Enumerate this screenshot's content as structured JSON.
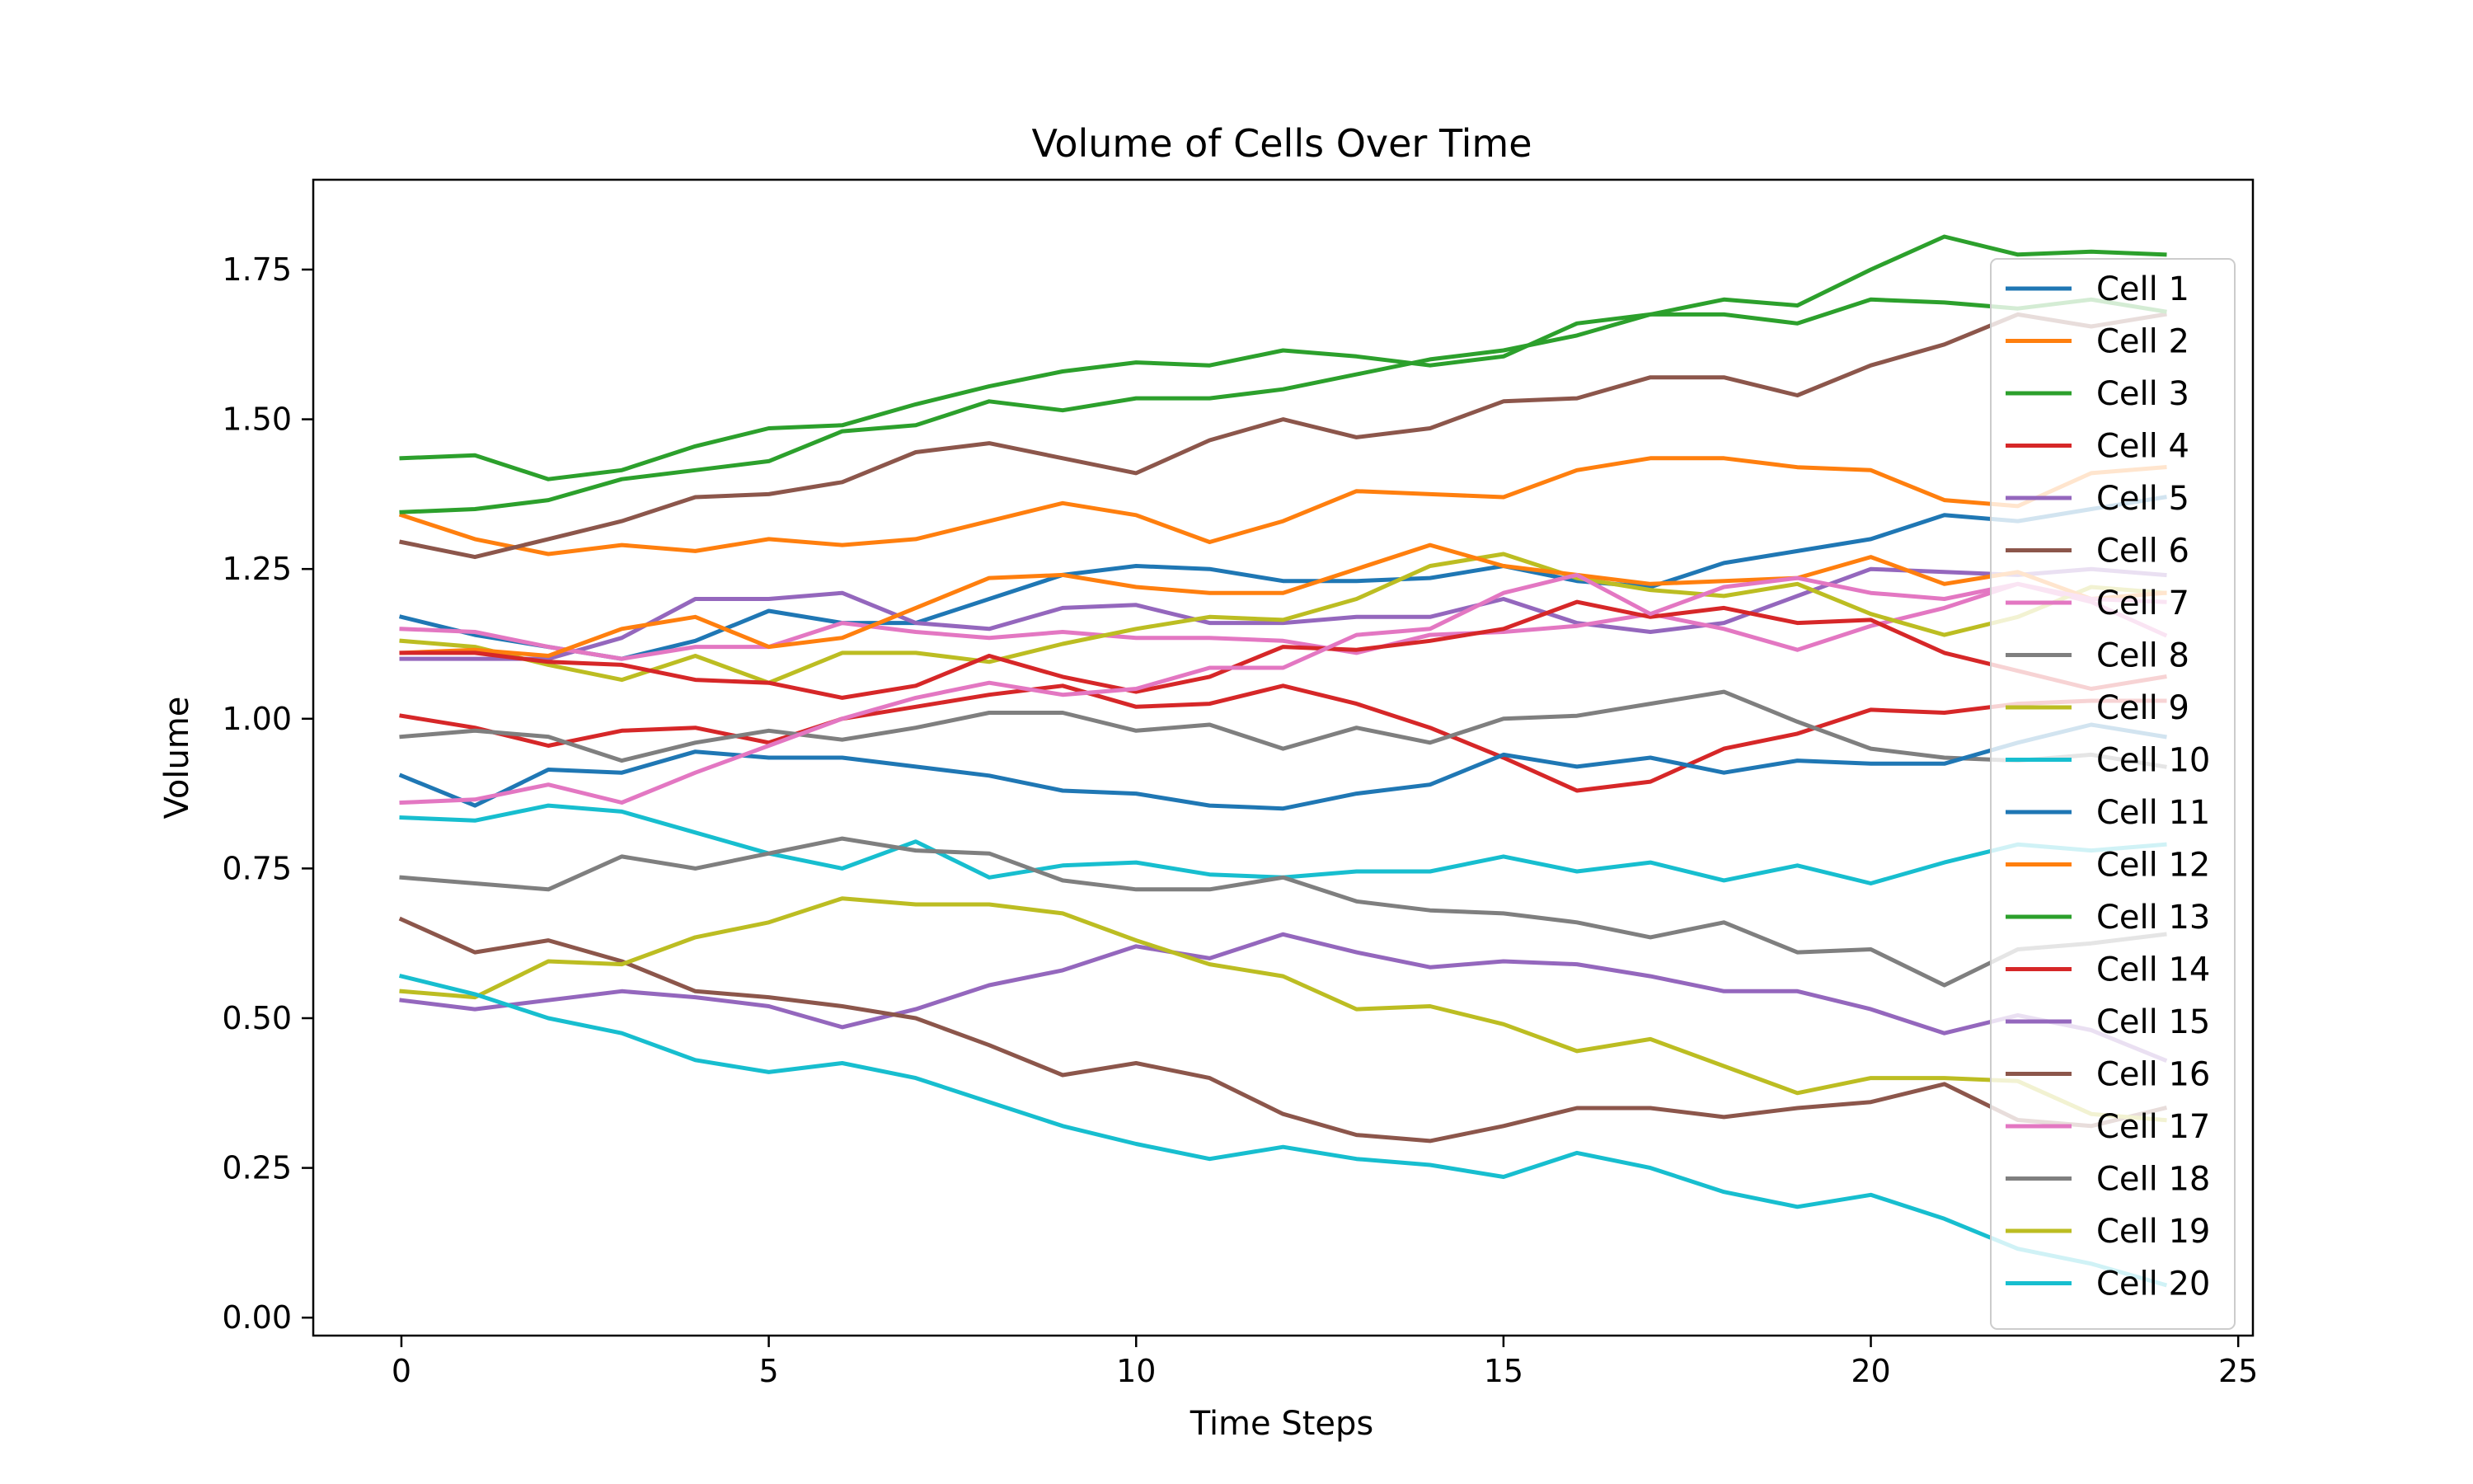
{
  "chart_data": {
    "type": "line",
    "title": "Volume of Cells Over Time",
    "xlabel": "Time Steps",
    "ylabel": "Volume",
    "xlim": [
      -1.2,
      25.2
    ],
    "ylim": [
      -0.03,
      1.9
    ],
    "xticks": [
      0,
      5,
      10,
      15,
      20,
      25
    ],
    "yticks": [
      0.0,
      0.25,
      0.5,
      0.75,
      1.0,
      1.25,
      1.5,
      1.75
    ],
    "ytick_labels": [
      "0.00",
      "0.25",
      "0.50",
      "0.75",
      "1.00",
      "1.25",
      "1.50",
      "1.75"
    ],
    "grid": false,
    "legend_position": "upper right",
    "x": [
      0,
      1,
      2,
      3,
      4,
      5,
      6,
      7,
      8,
      9,
      10,
      11,
      12,
      13,
      14,
      15,
      16,
      17,
      18,
      19,
      20,
      21,
      22,
      23,
      24
    ],
    "series": [
      {
        "name": "Cell 1",
        "color": "#1f77b4",
        "values": [
          1.17,
          1.14,
          1.12,
          1.1,
          1.13,
          1.18,
          1.16,
          1.16,
          1.2,
          1.24,
          1.255,
          1.25,
          1.23,
          1.23,
          1.235,
          1.255,
          1.23,
          1.22,
          1.26,
          1.28,
          1.3,
          1.34,
          1.33,
          1.35,
          1.37
        ]
      },
      {
        "name": "Cell 2",
        "color": "#ff7f0e",
        "values": [
          1.34,
          1.3,
          1.275,
          1.29,
          1.28,
          1.3,
          1.29,
          1.3,
          1.33,
          1.36,
          1.34,
          1.295,
          1.33,
          1.38,
          1.375,
          1.37,
          1.415,
          1.435,
          1.435,
          1.42,
          1.415,
          1.365,
          1.355,
          1.41,
          1.42
        ]
      },
      {
        "name": "Cell 3",
        "color": "#2ca02c",
        "values": [
          1.435,
          1.44,
          1.4,
          1.415,
          1.455,
          1.485,
          1.49,
          1.525,
          1.555,
          1.58,
          1.595,
          1.59,
          1.615,
          1.605,
          1.59,
          1.605,
          1.66,
          1.675,
          1.7,
          1.69,
          1.75,
          1.805,
          1.775,
          1.78,
          1.775
        ]
      },
      {
        "name": "Cell 4",
        "color": "#d62728",
        "values": [
          1.005,
          0.985,
          0.955,
          0.98,
          0.985,
          0.96,
          1.0,
          1.02,
          1.04,
          1.055,
          1.02,
          1.025,
          1.055,
          1.025,
          0.985,
          0.935,
          0.88,
          0.895,
          0.95,
          0.975,
          1.015,
          1.01,
          1.025,
          1.03,
          1.03
        ]
      },
      {
        "name": "Cell 5",
        "color": "#9467bd",
        "values": [
          1.1,
          1.1,
          1.1,
          1.135,
          1.2,
          1.2,
          1.21,
          1.16,
          1.15,
          1.185,
          1.19,
          1.16,
          1.16,
          1.17,
          1.17,
          1.2,
          1.16,
          1.145,
          1.16,
          1.205,
          1.25,
          1.245,
          1.24,
          1.25,
          1.24
        ]
      },
      {
        "name": "Cell 6",
        "color": "#8c564b",
        "values": [
          1.295,
          1.27,
          1.3,
          1.33,
          1.37,
          1.375,
          1.395,
          1.445,
          1.46,
          1.435,
          1.41,
          1.465,
          1.5,
          1.47,
          1.485,
          1.53,
          1.535,
          1.57,
          1.57,
          1.54,
          1.59,
          1.625,
          1.675,
          1.655,
          1.675
        ]
      },
      {
        "name": "Cell 7",
        "color": "#e377c2",
        "values": [
          1.15,
          1.145,
          1.12,
          1.1,
          1.12,
          1.12,
          1.16,
          1.145,
          1.135,
          1.145,
          1.135,
          1.135,
          1.13,
          1.11,
          1.14,
          1.145,
          1.155,
          1.175,
          1.15,
          1.115,
          1.155,
          1.185,
          1.225,
          1.195,
          1.14
        ]
      },
      {
        "name": "Cell 8",
        "color": "#7f7f7f",
        "values": [
          0.97,
          0.98,
          0.97,
          0.93,
          0.96,
          0.98,
          0.965,
          0.985,
          1.01,
          1.01,
          0.98,
          0.99,
          0.95,
          0.985,
          0.96,
          1.0,
          1.005,
          1.025,
          1.045,
          0.995,
          0.95,
          0.935,
          0.93,
          0.94,
          0.92
        ]
      },
      {
        "name": "Cell 9",
        "color": "#bcbd22",
        "values": [
          1.13,
          1.12,
          1.09,
          1.065,
          1.105,
          1.06,
          1.11,
          1.11,
          1.095,
          1.125,
          1.15,
          1.17,
          1.165,
          1.2,
          1.255,
          1.275,
          1.235,
          1.215,
          1.205,
          1.225,
          1.175,
          1.14,
          1.17,
          1.22,
          1.21
        ]
      },
      {
        "name": "Cell 10",
        "color": "#17becf",
        "values": [
          0.835,
          0.83,
          0.855,
          0.845,
          0.81,
          0.775,
          0.75,
          0.795,
          0.735,
          0.755,
          0.76,
          0.74,
          0.735,
          0.745,
          0.745,
          0.77,
          0.745,
          0.76,
          0.73,
          0.755,
          0.725,
          0.76,
          0.79,
          0.78,
          0.79
        ]
      },
      {
        "name": "Cell 11",
        "color": "#1f77b4",
        "values": [
          0.905,
          0.855,
          0.915,
          0.91,
          0.945,
          0.935,
          0.935,
          0.92,
          0.905,
          0.88,
          0.875,
          0.855,
          0.85,
          0.875,
          0.89,
          0.94,
          0.92,
          0.935,
          0.91,
          0.93,
          0.925,
          0.925,
          0.96,
          0.99,
          0.97
        ]
      },
      {
        "name": "Cell 12",
        "color": "#ff7f0e",
        "values": [
          1.11,
          1.115,
          1.105,
          1.15,
          1.17,
          1.12,
          1.135,
          1.185,
          1.235,
          1.24,
          1.22,
          1.21,
          1.21,
          1.25,
          1.29,
          1.255,
          1.24,
          1.225,
          1.23,
          1.235,
          1.27,
          1.225,
          1.245,
          1.2,
          1.21
        ]
      },
      {
        "name": "Cell 13",
        "color": "#2ca02c",
        "values": [
          1.345,
          1.35,
          1.365,
          1.4,
          1.415,
          1.43,
          1.48,
          1.49,
          1.53,
          1.515,
          1.535,
          1.535,
          1.55,
          1.575,
          1.6,
          1.615,
          1.64,
          1.675,
          1.675,
          1.66,
          1.7,
          1.695,
          1.685,
          1.7,
          1.68
        ]
      },
      {
        "name": "Cell 14",
        "color": "#d62728",
        "values": [
          1.11,
          1.11,
          1.095,
          1.09,
          1.065,
          1.06,
          1.035,
          1.055,
          1.105,
          1.07,
          1.045,
          1.07,
          1.12,
          1.115,
          1.13,
          1.15,
          1.195,
          1.17,
          1.185,
          1.16,
          1.165,
          1.11,
          1.08,
          1.05,
          1.07
        ]
      },
      {
        "name": "Cell 15",
        "color": "#9467bd",
        "values": [
          0.53,
          0.515,
          0.53,
          0.545,
          0.535,
          0.52,
          0.485,
          0.515,
          0.555,
          0.58,
          0.62,
          0.6,
          0.64,
          0.61,
          0.585,
          0.595,
          0.59,
          0.57,
          0.545,
          0.545,
          0.515,
          0.475,
          0.505,
          0.48,
          0.43
        ]
      },
      {
        "name": "Cell 16",
        "color": "#8c564b",
        "values": [
          0.665,
          0.61,
          0.63,
          0.595,
          0.545,
          0.535,
          0.52,
          0.5,
          0.455,
          0.405,
          0.425,
          0.4,
          0.34,
          0.305,
          0.295,
          0.32,
          0.35,
          0.35,
          0.335,
          0.35,
          0.36,
          0.39,
          0.33,
          0.32,
          0.35
        ]
      },
      {
        "name": "Cell 17",
        "color": "#e377c2",
        "values": [
          0.86,
          0.865,
          0.89,
          0.86,
          0.91,
          0.955,
          1.0,
          1.035,
          1.06,
          1.04,
          1.05,
          1.085,
          1.085,
          1.14,
          1.15,
          1.21,
          1.24,
          1.175,
          1.22,
          1.235,
          1.21,
          1.2,
          1.225,
          1.2,
          1.195
        ]
      },
      {
        "name": "Cell 18",
        "color": "#7f7f7f",
        "values": [
          0.735,
          0.725,
          0.715,
          0.77,
          0.75,
          0.775,
          0.8,
          0.78,
          0.775,
          0.73,
          0.715,
          0.715,
          0.735,
          0.695,
          0.68,
          0.675,
          0.66,
          0.635,
          0.66,
          0.61,
          0.615,
          0.555,
          0.615,
          0.625,
          0.64
        ]
      },
      {
        "name": "Cell 19",
        "color": "#bcbd22",
        "values": [
          0.545,
          0.535,
          0.595,
          0.59,
          0.635,
          0.66,
          0.7,
          0.69,
          0.69,
          0.675,
          0.63,
          0.59,
          0.57,
          0.515,
          0.52,
          0.49,
          0.445,
          0.465,
          0.42,
          0.375,
          0.4,
          0.4,
          0.395,
          0.34,
          0.33
        ]
      },
      {
        "name": "Cell 20",
        "color": "#17becf",
        "values": [
          0.57,
          0.54,
          0.5,
          0.475,
          0.43,
          0.41,
          0.425,
          0.4,
          0.36,
          0.32,
          0.29,
          0.265,
          0.285,
          0.265,
          0.255,
          0.235,
          0.275,
          0.25,
          0.21,
          0.185,
          0.205,
          0.165,
          0.115,
          0.09,
          0.055
        ]
      }
    ]
  }
}
